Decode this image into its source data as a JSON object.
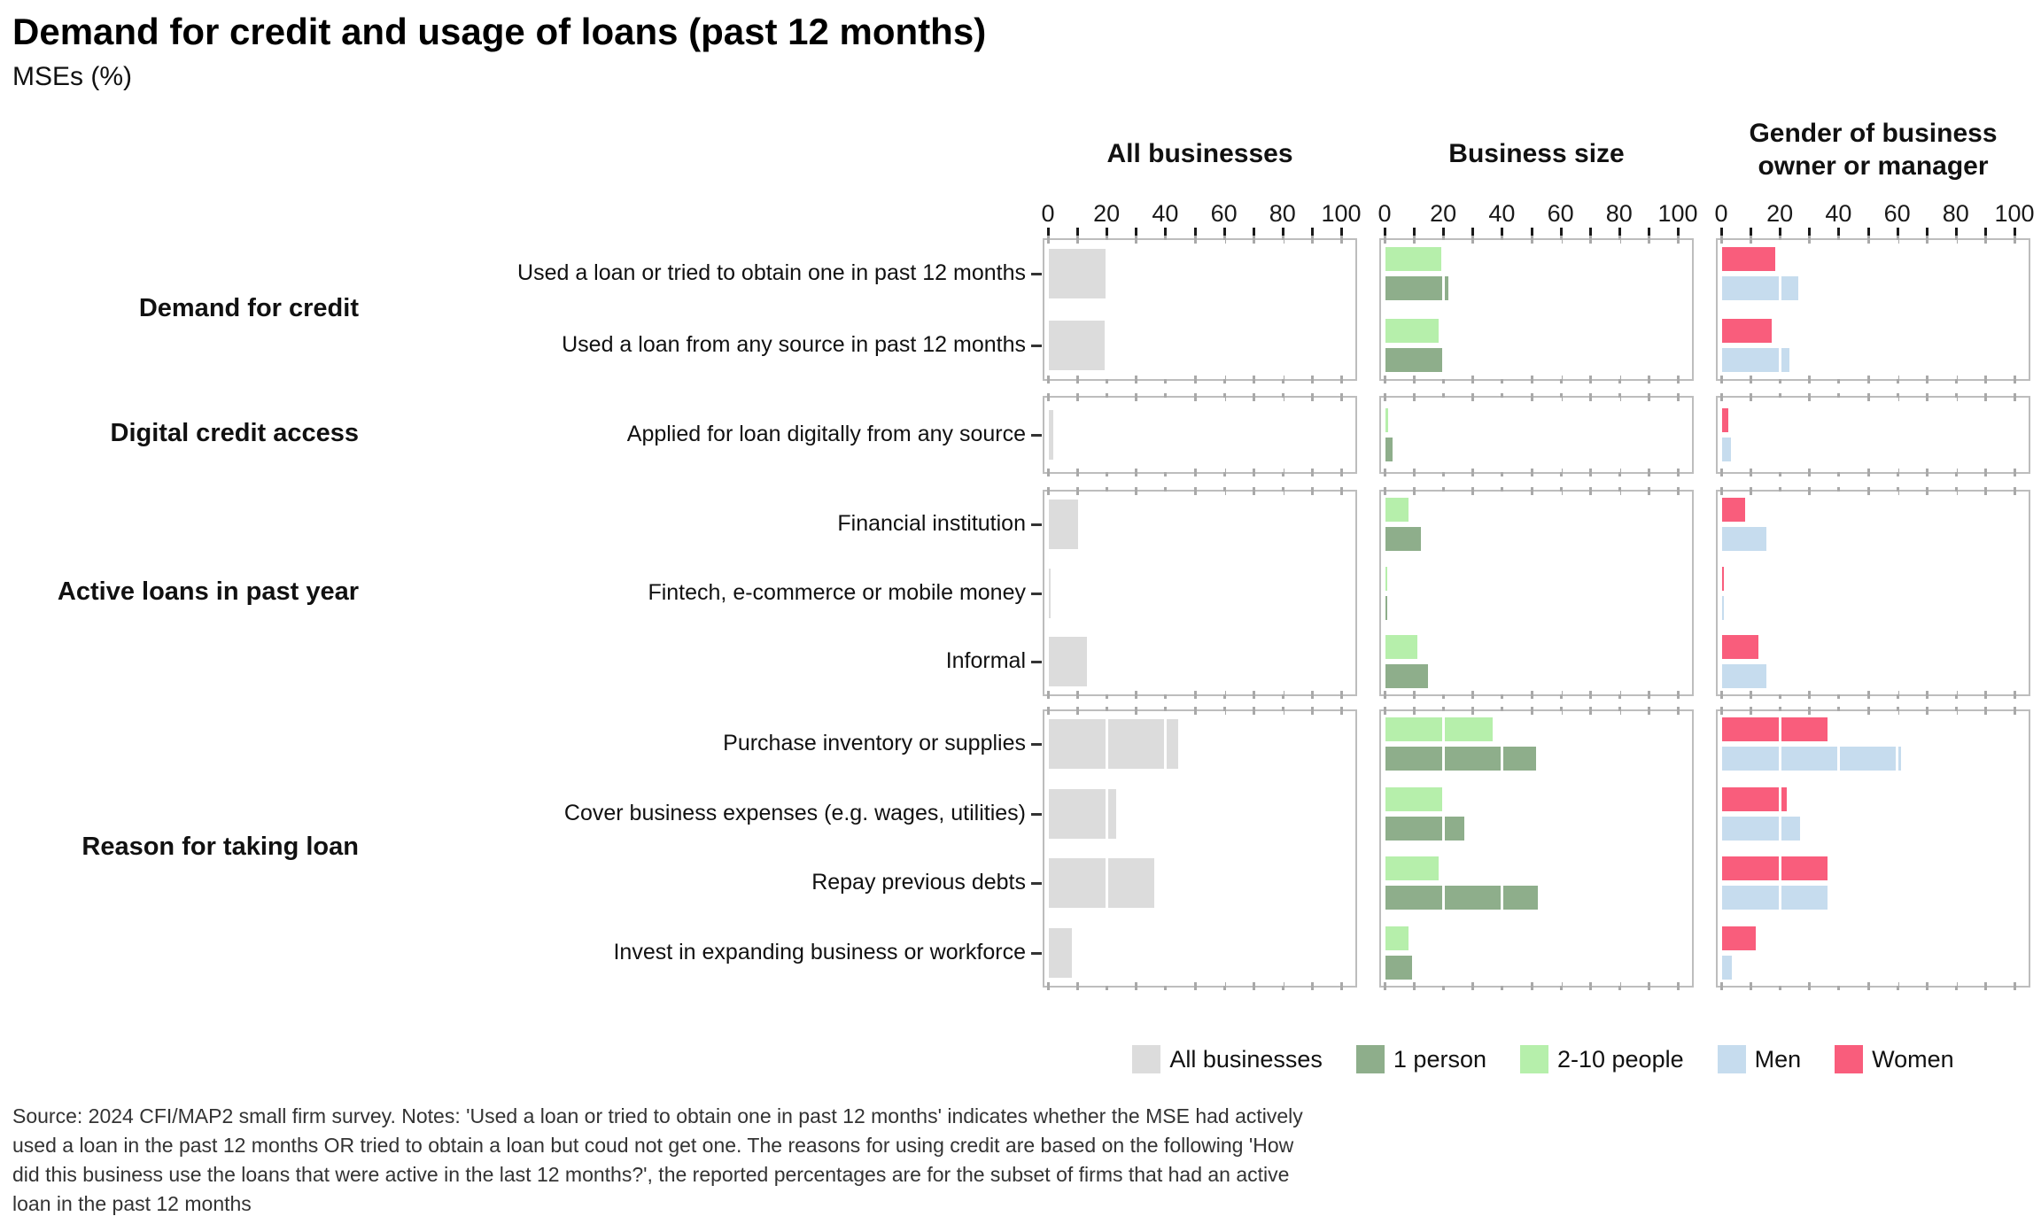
{
  "title": "Demand for credit and usage of loans (past 12 months)",
  "subtitle": "MSEs (%)",
  "source_note": {
    "lines": [
      "Source: 2024 CFI/MAP2 small firm survey. Notes: 'Used a loan or tried to obtain one in past 12 months' indicates whether the MSE had actively",
      "used a loan in the past 12 months OR tried to obtain a loan but coud not get one. The reasons for using credit are based on the following 'How",
      "did this business use the loans that were active in the last 12 months?', the reported percentages are for the subset of firms that had an active",
      "loan in the past 12 months"
    ]
  },
  "chart_data": {
    "type": "bar",
    "orientation": "horizontal",
    "unit": "%",
    "xlim": [
      0,
      100
    ],
    "axis_ticks": [
      0,
      20,
      40,
      60,
      80,
      100
    ],
    "grid": "white major gridlines over bars",
    "colors": {
      "all": "#dcdcdc",
      "person1": "#8eae8b",
      "people2_10": "#b6efab",
      "men": "#c6dcee",
      "women": "#f95d7c"
    },
    "panels": [
      {
        "header_lines": [
          "All businesses"
        ],
        "series": [
          "all"
        ]
      },
      {
        "header_lines": [
          "Business size"
        ],
        "series": [
          "people2_10",
          "person1"
        ]
      },
      {
        "header_lines": [
          "Gender of business",
          "owner or manager"
        ],
        "series": [
          "women",
          "men"
        ]
      }
    ],
    "legend": [
      {
        "key": "all",
        "label": "All businesses"
      },
      {
        "key": "person1",
        "label": "1 person"
      },
      {
        "key": "people2_10",
        "label": "2-10 people"
      },
      {
        "key": "men",
        "label": "Men"
      },
      {
        "key": "women",
        "label": "Women"
      }
    ],
    "groups": [
      {
        "label": "Demand for credit",
        "rows": [
          {
            "label": "Used a loan or tried to obtain one in past 12 months",
            "values": {
              "all": 20,
              "person1": 21.5,
              "people2_10": 19,
              "men": 26,
              "women": 18
            }
          },
          {
            "label": "Used a loan from any source in past 12 months",
            "values": {
              "all": 19,
              "person1": 20,
              "people2_10": 18,
              "men": 23,
              "women": 17
            }
          }
        ]
      },
      {
        "label": "Digital credit access",
        "rows": [
          {
            "label": "Applied for loan digitally from any source",
            "values": {
              "all": 1.5,
              "person1": 2.5,
              "people2_10": 1,
              "men": 3,
              "women": 2
            }
          }
        ]
      },
      {
        "label": "Active loans in past year",
        "rows": [
          {
            "label": "Financial institution",
            "values": {
              "all": 10,
              "person1": 12,
              "people2_10": 8,
              "men": 15,
              "women": 8
            }
          },
          {
            "label": "Fintech, e-commerce or mobile money",
            "values": {
              "all": 0.4,
              "person1": 0.5,
              "people2_10": 0.3,
              "men": 0.4,
              "women": 0.6
            }
          },
          {
            "label": "Informal",
            "values": {
              "all": 13,
              "person1": 14.5,
              "people2_10": 11,
              "men": 15,
              "women": 12.5
            }
          }
        ]
      },
      {
        "label": "Reason for taking loan",
        "rows": [
          {
            "label": "Purchase inventory or supplies",
            "values": {
              "all": 44,
              "person1": 51.5,
              "people2_10": 36.5,
              "men": 61,
              "women": 36
            }
          },
          {
            "label": "Cover business expenses (e.g. wages, utilities)",
            "values": {
              "all": 23,
              "person1": 27,
              "people2_10": 19.5,
              "men": 26.5,
              "women": 22
            }
          },
          {
            "label": "Repay previous debts",
            "values": {
              "all": 36,
              "person1": 52,
              "people2_10": 18,
              "men": 36,
              "women": 36
            }
          },
          {
            "label": "Invest in expanding business or workforce",
            "values": {
              "all": 8,
              "person1": 9,
              "people2_10": 8,
              "men": 3.3,
              "women": 11.5
            }
          }
        ]
      }
    ]
  }
}
